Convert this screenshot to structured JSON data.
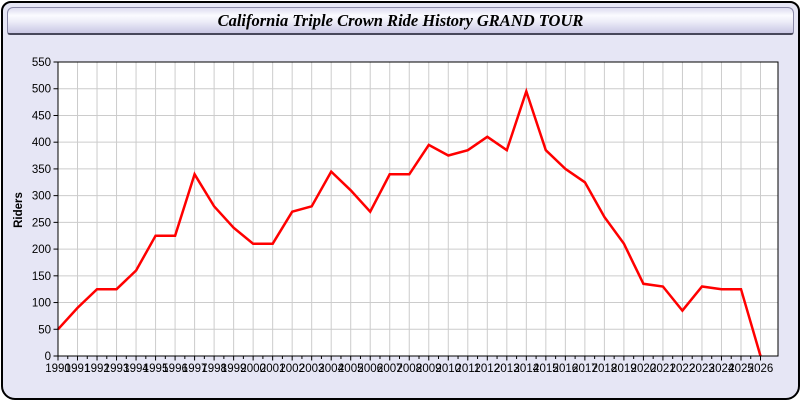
{
  "window": {
    "title": "California Triple Crown Ride History GRAND TOUR"
  },
  "colors": {
    "window_background": "#e6e6f5",
    "plot_background": "#ffffff",
    "grid": "#cccccc",
    "axis": "#000000",
    "line": "#ff0000",
    "tick_label": "#000000"
  },
  "chart_data": {
    "type": "line",
    "title": "California Triple Crown Ride History GRAND TOUR",
    "xlabel": "",
    "ylabel": "Riders",
    "x": [
      1990,
      1991,
      1992,
      1993,
      1994,
      1995,
      1996,
      1997,
      1998,
      1999,
      2000,
      2001,
      2002,
      2003,
      2004,
      2005,
      2006,
      2007,
      2008,
      2009,
      2010,
      2011,
      2012,
      2013,
      2014,
      2015,
      2016,
      2017,
      2018,
      2019,
      2020,
      2021,
      2022,
      2023,
      2024,
      2025,
      2026
    ],
    "series": [
      {
        "name": "Riders",
        "color": "#ff0000",
        "values": [
          50,
          90,
          125,
          125,
          160,
          225,
          225,
          340,
          280,
          240,
          210,
          210,
          270,
          280,
          345,
          310,
          270,
          340,
          340,
          395,
          375,
          385,
          410,
          385,
          495,
          385,
          350,
          325,
          260,
          210,
          135,
          130,
          85,
          130,
          125,
          125,
          0
        ]
      }
    ],
    "ylim": [
      0,
      550
    ],
    "ytick_step": 50,
    "yticks": [
      0,
      50,
      100,
      150,
      200,
      250,
      300,
      350,
      400,
      450,
      500,
      550
    ],
    "grid": true,
    "legend": false
  }
}
